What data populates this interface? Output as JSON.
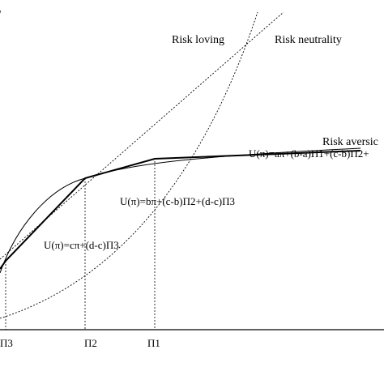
{
  "curves": {
    "risk_loving": "Risk loving",
    "risk_neutrality": "Risk neutrality",
    "risk_aversion": "Risk aversic"
  },
  "equations": {
    "upper": "U(π)=aπ+(b-a)Π1+(c-b)Π2+",
    "middle": "U(π)=bπ+(c-b)Π2+(d-c)Π3",
    "lower": "U(π)=cπ+(d-c)Π3"
  },
  "ticks": {
    "pi3": "Π3",
    "pi2": "Π2",
    "pi1": "Π1"
  },
  "colors": {
    "ink": "#000000",
    "background": "#ffffff"
  }
}
